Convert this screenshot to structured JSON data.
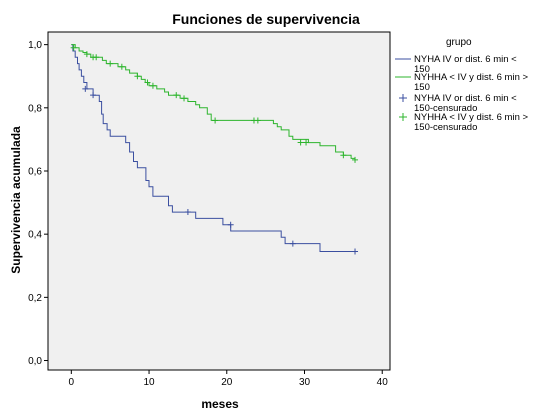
{
  "chart_data": {
    "type": "line",
    "title": "Funciones de supervivencia",
    "xlabel": "meses",
    "ylabel": "Supervivencia acumulada",
    "xlim": [
      -3,
      41
    ],
    "ylim": [
      -0.03,
      1.04
    ],
    "x_ticks": [
      0,
      10,
      20,
      30,
      40
    ],
    "x_tick_labels": [
      "0",
      "10",
      "20",
      "30",
      "40"
    ],
    "y_ticks": [
      0.0,
      0.2,
      0.4,
      0.6,
      0.8,
      1.0
    ],
    "y_tick_labels": [
      "0,0",
      "0,2",
      "0,4",
      "0,6",
      "0,8",
      "1,0"
    ],
    "grid": false,
    "legend_title": "grupo",
    "legend_position": "right",
    "legend": [
      {
        "lines": [
          "NYHA IV or dist. 6 min <",
          "150"
        ],
        "color": "#3b4fa0",
        "marker": "line"
      },
      {
        "lines": [
          "NYHHA < IV y dist. 6 min >",
          "150"
        ],
        "color": "#2db52d",
        "marker": "line"
      },
      {
        "lines": [
          "NYHA IV or dist. 6 min <",
          "150-censurado"
        ],
        "color": "#3b4fa0",
        "marker": "plus"
      },
      {
        "lines": [
          "NYHHA < IV y dist. 6 min >",
          "150-censurado"
        ],
        "color": "#2db52d",
        "marker": "plus"
      }
    ],
    "series": [
      {
        "color": "#3b4fa0",
        "steps": [
          [
            0,
            1.0
          ],
          [
            0.2,
            0.98
          ],
          [
            0.5,
            0.96
          ],
          [
            0.8,
            0.94
          ],
          [
            1.0,
            0.92
          ],
          [
            1.3,
            0.9
          ],
          [
            1.6,
            0.88
          ],
          [
            2.0,
            0.86
          ],
          [
            2.8,
            0.84
          ],
          [
            3.6,
            0.82
          ],
          [
            3.9,
            0.78
          ],
          [
            4.1,
            0.75
          ],
          [
            4.6,
            0.73
          ],
          [
            5.0,
            0.71
          ],
          [
            7.0,
            0.69
          ],
          [
            7.5,
            0.66
          ],
          [
            8.0,
            0.63
          ],
          [
            8.5,
            0.61
          ],
          [
            9.6,
            0.57
          ],
          [
            10.0,
            0.55
          ],
          [
            10.5,
            0.52
          ],
          [
            12.5,
            0.49
          ],
          [
            13.0,
            0.47
          ],
          [
            16.0,
            0.45
          ],
          [
            19.5,
            0.43
          ],
          [
            20.5,
            0.41
          ],
          [
            27.0,
            0.39
          ],
          [
            27.5,
            0.37
          ],
          [
            32.0,
            0.345
          ],
          [
            36.5,
            0.345
          ]
        ],
        "censored": [
          [
            1.8,
            0.86
          ],
          [
            2.8,
            0.84
          ],
          [
            15.0,
            0.47
          ],
          [
            20.5,
            0.43
          ],
          [
            28.5,
            0.37
          ],
          [
            36.5,
            0.345
          ]
        ]
      },
      {
        "color": "#2db52d",
        "steps": [
          [
            0,
            1.0
          ],
          [
            0.5,
            0.99
          ],
          [
            1.0,
            0.98
          ],
          [
            1.5,
            0.975
          ],
          [
            2.0,
            0.97
          ],
          [
            2.5,
            0.96
          ],
          [
            4.0,
            0.95
          ],
          [
            4.5,
            0.94
          ],
          [
            6.0,
            0.93
          ],
          [
            7.0,
            0.92
          ],
          [
            7.5,
            0.91
          ],
          [
            8.5,
            0.9
          ],
          [
            9.0,
            0.89
          ],
          [
            9.5,
            0.88
          ],
          [
            10.0,
            0.87
          ],
          [
            11.0,
            0.86
          ],
          [
            12.0,
            0.85
          ],
          [
            12.5,
            0.84
          ],
          [
            14.0,
            0.83
          ],
          [
            15.0,
            0.82
          ],
          [
            16.0,
            0.81
          ],
          [
            16.5,
            0.8
          ],
          [
            17.5,
            0.78
          ],
          [
            18.0,
            0.76
          ],
          [
            26.0,
            0.75
          ],
          [
            26.5,
            0.74
          ],
          [
            27.0,
            0.73
          ],
          [
            28.0,
            0.71
          ],
          [
            28.5,
            0.7
          ],
          [
            30.5,
            0.69
          ],
          [
            32.0,
            0.68
          ],
          [
            34.0,
            0.66
          ],
          [
            35.0,
            0.65
          ],
          [
            36.0,
            0.64
          ],
          [
            36.5,
            0.635
          ]
        ],
        "censored": [
          [
            0.3,
            0.99
          ],
          [
            2.0,
            0.97
          ],
          [
            2.8,
            0.96
          ],
          [
            3.2,
            0.96
          ],
          [
            5.0,
            0.94
          ],
          [
            6.5,
            0.93
          ],
          [
            8.5,
            0.9
          ],
          [
            9.8,
            0.88
          ],
          [
            10.5,
            0.87
          ],
          [
            13.5,
            0.84
          ],
          [
            14.5,
            0.83
          ],
          [
            18.5,
            0.76
          ],
          [
            23.5,
            0.76
          ],
          [
            24.0,
            0.76
          ],
          [
            29.5,
            0.69
          ],
          [
            30.2,
            0.69
          ],
          [
            35.0,
            0.65
          ],
          [
            36.5,
            0.635
          ]
        ]
      }
    ]
  }
}
